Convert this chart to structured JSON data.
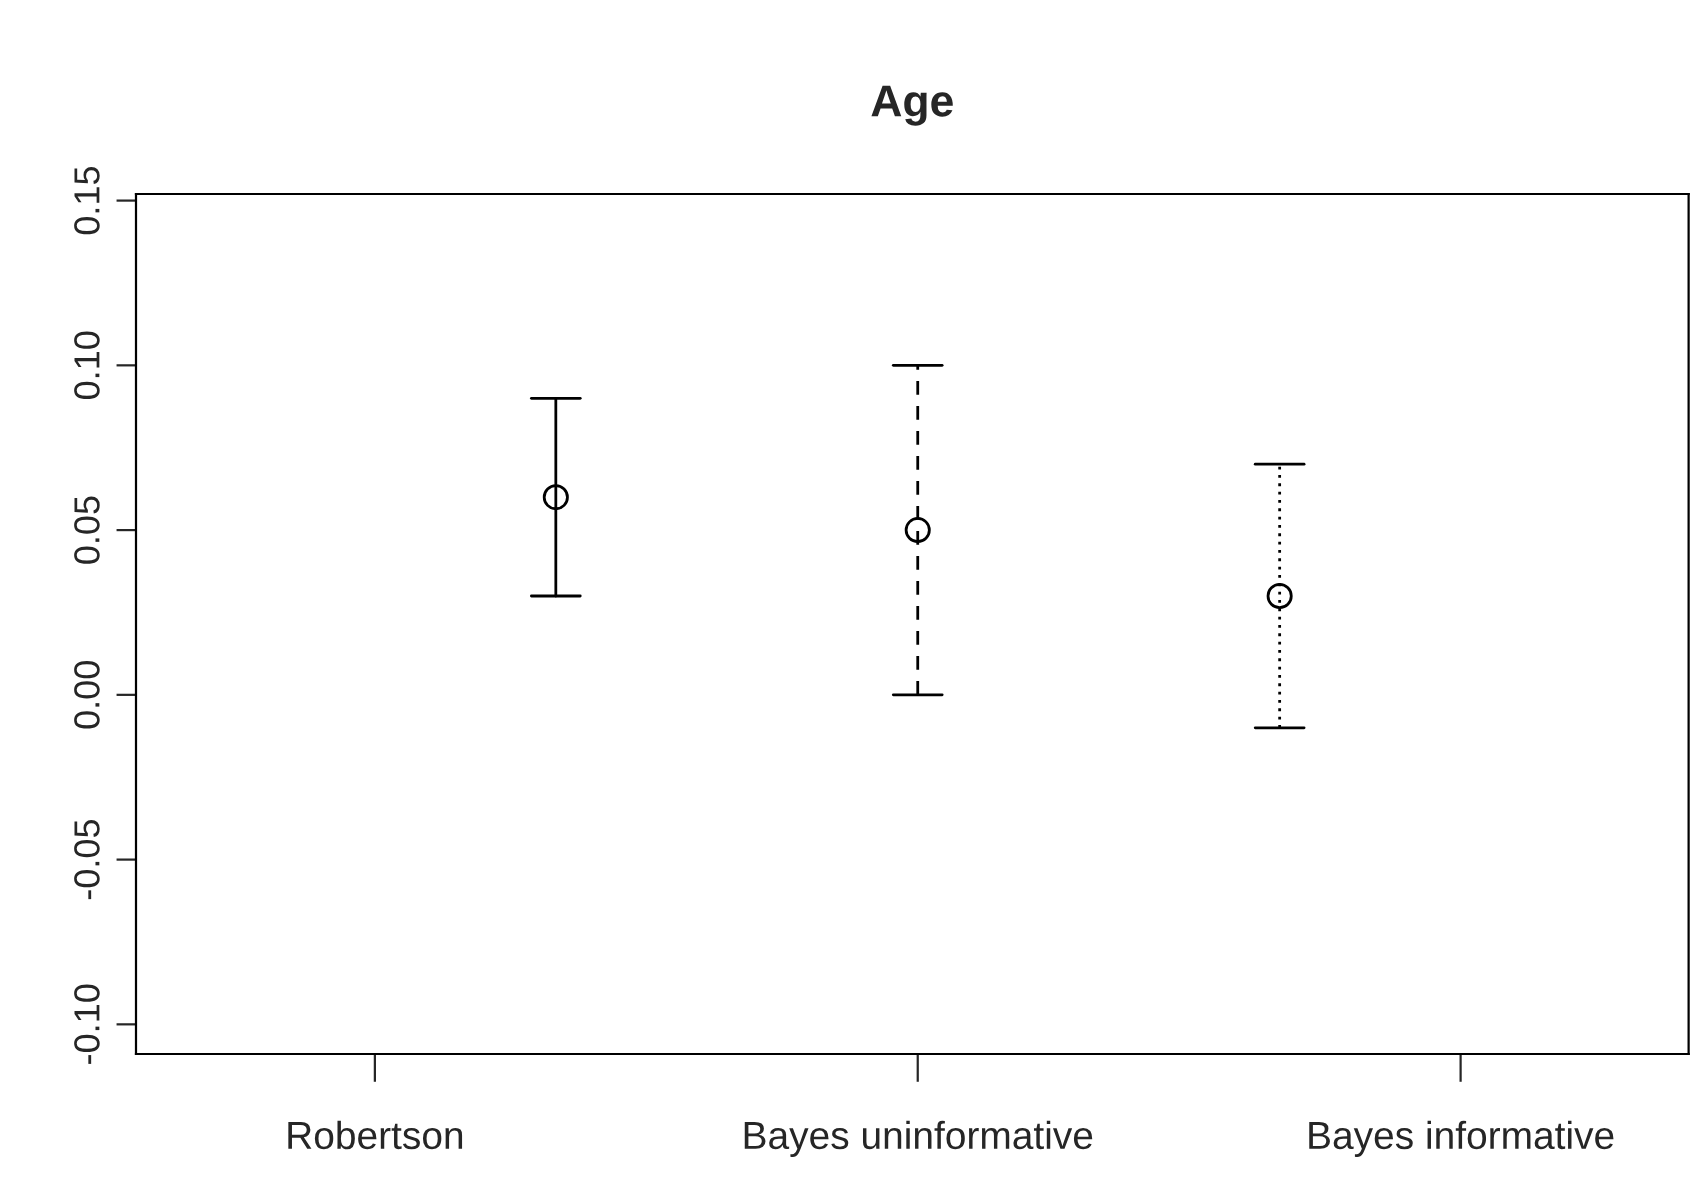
{
  "chart_data": {
    "type": "scatter",
    "title": "Age",
    "categories": [
      "Robertson",
      null,
      null,
      "Bayes uninformative",
      null,
      null,
      "Bayes informative"
    ],
    "ylim": [
      -0.109,
      0.152
    ],
    "yticks": [
      {
        "value": -0.1,
        "label": "-0.10"
      },
      {
        "value": -0.05,
        "label": "-0.05"
      },
      {
        "value": 0.0,
        "label": "0.00"
      },
      {
        "value": 0.05,
        "label": "0.05"
      },
      {
        "value": 0.1,
        "label": "0.10"
      },
      {
        "value": 0.15,
        "label": "0.15"
      }
    ],
    "marker": "circle",
    "grid": false,
    "legend": false,
    "series": [
      {
        "color": "#000000",
        "values": [
          null,
          0.06,
          null,
          null,
          null,
          null,
          null
        ],
        "errors": [
          null,
          [
            0.03,
            0.09
          ],
          null,
          null,
          null,
          null,
          null
        ],
        "line_style": "solid"
      },
      {
        "color": "#000000",
        "values": [
          null,
          null,
          null,
          0.05,
          null,
          null,
          null
        ],
        "errors": [
          null,
          null,
          null,
          [
            0.0,
            0.1
          ],
          null,
          null,
          null
        ],
        "line_style": "dashed"
      },
      {
        "color": "#000000",
        "values": [
          null,
          null,
          null,
          null,
          null,
          0.03,
          null
        ],
        "errors": [
          null,
          null,
          null,
          null,
          null,
          [
            -0.01,
            0.07
          ],
          null
        ],
        "line_style": "dotted"
      }
    ]
  }
}
